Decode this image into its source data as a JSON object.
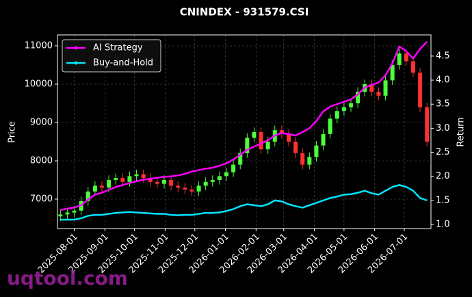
{
  "chart_data": {
    "type": "candlestick",
    "title": "CNINDEX - 931579.CSI",
    "ylabel": "Price",
    "y2label": "Return",
    "watermark": "uqtool.com",
    "x": [
      "2025-07-18",
      "2025-07-25",
      "2025-08-01",
      "2025-08-08",
      "2025-08-15",
      "2025-08-22",
      "2025-08-29",
      "2025-09-05",
      "2025-09-12",
      "2025-09-19",
      "2025-09-26",
      "2025-10-03",
      "2025-10-10",
      "2025-10-17",
      "2025-10-24",
      "2025-10-31",
      "2025-11-07",
      "2025-11-14",
      "2025-11-21",
      "2025-11-28",
      "2025-12-05",
      "2025-12-12",
      "2025-12-19",
      "2025-12-26",
      "2026-01-02",
      "2026-01-09",
      "2026-01-16",
      "2026-01-23",
      "2026-01-30",
      "2026-02-06",
      "2026-02-13",
      "2026-02-20",
      "2026-02-27",
      "2026-03-06",
      "2026-03-13",
      "2026-03-20",
      "2026-03-27",
      "2026-04-03",
      "2026-04-10",
      "2026-04-17",
      "2026-04-24",
      "2026-05-01",
      "2026-05-08",
      "2026-05-15",
      "2026-05-22",
      "2026-05-29",
      "2026-06-05",
      "2026-06-12",
      "2026-06-19",
      "2026-06-26",
      "2026-07-03",
      "2026-07-10",
      "2026-07-17",
      "2026-07-24"
    ],
    "open": [
      6550,
      6600,
      6650,
      6700,
      6950,
      7200,
      7350,
      7300,
      7500,
      7550,
      7450,
      7600,
      7650,
      7550,
      7450,
      7400,
      7500,
      7350,
      7300,
      7250,
      7200,
      7350,
      7450,
      7500,
      7600,
      7700,
      7900,
      8200,
      8600,
      8750,
      8300,
      8500,
      8800,
      8700,
      8500,
      8200,
      7900,
      8100,
      8400,
      8700,
      9100,
      9300,
      9400,
      9500,
      9800,
      10000,
      9800,
      9700,
      10100,
      10500,
      10800,
      10600,
      10300,
      9400
    ],
    "high": [
      6720,
      6770,
      6820,
      7070,
      7320,
      7470,
      7470,
      7620,
      7670,
      7670,
      7720,
      7770,
      7770,
      7670,
      7570,
      7620,
      7620,
      7470,
      7420,
      7370,
      7470,
      7570,
      7620,
      7720,
      7820,
      8020,
      8320,
      8720,
      8870,
      8870,
      8620,
      8920,
      8920,
      8820,
      8620,
      8320,
      8220,
      8520,
      8820,
      9220,
      9420,
      9520,
      9620,
      9920,
      10120,
      10120,
      9920,
      10220,
      10620,
      10920,
      10920,
      10720,
      10420,
      9520
    ],
    "low": [
      6430,
      6480,
      6530,
      6580,
      6830,
      7080,
      7180,
      7180,
      7380,
      7330,
      7330,
      7480,
      7430,
      7330,
      7280,
      7280,
      7230,
      7180,
      7130,
      7080,
      7080,
      7230,
      7330,
      7380,
      7480,
      7580,
      7780,
      8080,
      8480,
      8180,
      8180,
      8380,
      8580,
      8380,
      8080,
      7780,
      7780,
      7980,
      8280,
      8580,
      8980,
      9180,
      9280,
      9380,
      9680,
      9680,
      9580,
      9580,
      9980,
      10380,
      10480,
      10180,
      9280,
      8380
    ],
    "close": [
      6600,
      6650,
      6700,
      6950,
      7200,
      7350,
      7300,
      7500,
      7550,
      7450,
      7600,
      7650,
      7550,
      7450,
      7400,
      7500,
      7350,
      7300,
      7250,
      7200,
      7350,
      7450,
      7500,
      7600,
      7700,
      7900,
      8200,
      8600,
      8750,
      8300,
      8500,
      8800,
      8700,
      8500,
      8200,
      7900,
      8100,
      8400,
      8700,
      9100,
      9300,
      9400,
      9500,
      9800,
      10000,
      9800,
      9700,
      10100,
      10500,
      10800,
      10600,
      10300,
      9400,
      8500
    ],
    "up_color": "#4cff3a",
    "down_color": "#ff3030",
    "series": [
      {
        "name": "AI Strategy",
        "color": "#ff00ff",
        "axis": "y2",
        "values": [
          1.3,
          1.33,
          1.35,
          1.4,
          1.52,
          1.62,
          1.66,
          1.72,
          1.78,
          1.82,
          1.86,
          1.9,
          1.93,
          1.95,
          1.97,
          1.99,
          2.0,
          2.02,
          2.05,
          2.1,
          2.13,
          2.16,
          2.18,
          2.22,
          2.27,
          2.35,
          2.45,
          2.55,
          2.62,
          2.68,
          2.75,
          2.85,
          2.9,
          2.88,
          2.85,
          2.92,
          3.0,
          3.15,
          3.35,
          3.45,
          3.5,
          3.55,
          3.6,
          3.7,
          3.85,
          3.9,
          3.95,
          4.1,
          4.35,
          4.7,
          4.6,
          4.45,
          4.65,
          4.8
        ]
      },
      {
        "name": "Buy-and-Hold",
        "color": "#00e5ff",
        "axis": "y2",
        "values": [
          1.1,
          1.1,
          1.1,
          1.13,
          1.18,
          1.2,
          1.2,
          1.22,
          1.24,
          1.25,
          1.26,
          1.25,
          1.24,
          1.23,
          1.22,
          1.22,
          1.2,
          1.19,
          1.2,
          1.2,
          1.22,
          1.24,
          1.24,
          1.25,
          1.28,
          1.32,
          1.38,
          1.42,
          1.4,
          1.38,
          1.42,
          1.5,
          1.48,
          1.42,
          1.38,
          1.35,
          1.4,
          1.45,
          1.5,
          1.55,
          1.58,
          1.62,
          1.63,
          1.66,
          1.7,
          1.65,
          1.62,
          1.7,
          1.78,
          1.82,
          1.78,
          1.7,
          1.55,
          1.5
        ]
      }
    ],
    "xlim": [
      "2025-07-15",
      "2026-07-28"
    ],
    "xticks": [
      "2025-08-01",
      "2025-09-01",
      "2025-10-01",
      "2025-11-01",
      "2025-12-01",
      "2026-01-01",
      "2026-02-01",
      "2026-03-01",
      "2026-04-01",
      "2026-05-01",
      "2026-06-01",
      "2026-07-01"
    ],
    "ylim": [
      6232,
      11286
    ],
    "yticks": [
      7000,
      8000,
      9000,
      10000,
      11000
    ],
    "y2lim": [
      0.915,
      4.94
    ],
    "y2ticks": [
      {
        "value": 1,
        "label": "1.0"
      },
      1.5,
      {
        "value": 2,
        "label": "2.0"
      },
      2.5,
      {
        "value": 3,
        "label": "3.0"
      },
      3.5,
      {
        "value": 4,
        "label": "4.0"
      },
      4.5
    ],
    "grid": true,
    "legend": "upper left"
  }
}
